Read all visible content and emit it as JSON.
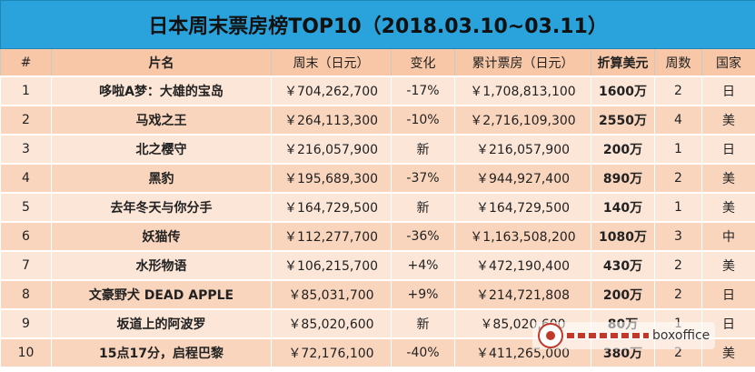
{
  "title": "日本周末票房榜TOP10（2018.03.10~03.11）",
  "headers": {
    "rank": "#",
    "name": "片名",
    "weekend": "周末（日元）",
    "change": "变化",
    "total": "累计票房（日元）",
    "usd": "折算美元",
    "weeks": "周数",
    "country": "国家"
  },
  "rows": [
    {
      "rank": "1",
      "name": "哆啦A梦：大雄的宝岛",
      "weekend": "￥704,262,700",
      "change": "-17%",
      "total": "￥1,708,813,100",
      "usd": "1600万",
      "weeks": "2",
      "country": "日"
    },
    {
      "rank": "2",
      "name": "马戏之王",
      "weekend": "￥264,113,300",
      "change": "-10%",
      "total": "￥2,716,109,300",
      "usd": "2550万",
      "weeks": "4",
      "country": "美"
    },
    {
      "rank": "3",
      "name": "北之樱守",
      "weekend": "￥216,057,900",
      "change": "新",
      "total": "￥216,057,900",
      "usd": "200万",
      "weeks": "1",
      "country": "日"
    },
    {
      "rank": "4",
      "name": "黑豹",
      "weekend": "￥195,689,300",
      "change": "-37%",
      "total": "￥944,927,400",
      "usd": "890万",
      "weeks": "2",
      "country": "美"
    },
    {
      "rank": "5",
      "name": "去年冬天与你分手",
      "weekend": "￥164,729,500",
      "change": "新",
      "total": "￥164,729,500",
      "usd": "140万",
      "weeks": "1",
      "country": "美"
    },
    {
      "rank": "6",
      "name": "妖猫传",
      "weekend": "￥112,277,700",
      "change": "-36%",
      "total": "￥1,163,508,200",
      "usd": "1080万",
      "weeks": "3",
      "country": "中"
    },
    {
      "rank": "7",
      "name": "水形物语",
      "weekend": "￥106,215,700",
      "change": "+4%",
      "total": "￥472,190,400",
      "usd": "430万",
      "weeks": "2",
      "country": "美"
    },
    {
      "rank": "8",
      "name": "文豪野犬 DEAD APPLE",
      "weekend": "￥85,031,700",
      "change": "+9%",
      "total": "￥214,721,808",
      "usd": "200万",
      "weeks": "2",
      "country": "日"
    },
    {
      "rank": "9",
      "name": "坂道上的阿波罗",
      "weekend": "￥85,020,600",
      "change": "新",
      "total": "￥85,020,600",
      "usd": "80万",
      "weeks": "1",
      "country": "日"
    },
    {
      "rank": "10",
      "name": "15点17分，启程巴黎",
      "weekend": "￥72,176,100",
      "change": "-40%",
      "total": "￥411,265,000",
      "usd": "380万",
      "weeks": "2",
      "country": "美"
    }
  ],
  "watermark": {
    "text": "boxoffice",
    "icon": "wechat-logo-icon"
  }
}
